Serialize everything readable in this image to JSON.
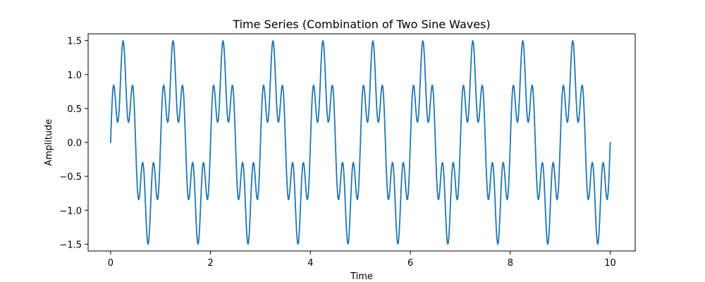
{
  "chart_data": {
    "type": "line",
    "title": "Time Series (Combination of Two Sine Waves)",
    "xlabel": "Time",
    "ylabel": "Amplitude",
    "xlim": [
      -0.45,
      10.5
    ],
    "ylim": [
      -1.6,
      1.6
    ],
    "xticks": [
      0,
      2,
      4,
      6,
      8,
      10
    ],
    "yticks": [
      -1.5,
      -1.0,
      -0.5,
      0.0,
      0.5,
      1.0,
      1.5
    ],
    "x_tick_labels": [
      "0",
      "2",
      "4",
      "6",
      "8",
      "10"
    ],
    "y_tick_labels": [
      "−1.5",
      "−1.0",
      "−0.5",
      "0.0",
      "0.5",
      "1.0",
      "1.5"
    ],
    "series": [
      {
        "color": "#1f77b4",
        "function": "sin(2*pi*1*t) + 0.5*sin(2*pi*5*t)",
        "x_range": [
          0,
          10
        ],
        "points": 1000
      }
    ],
    "grid": false,
    "legend": "none"
  }
}
